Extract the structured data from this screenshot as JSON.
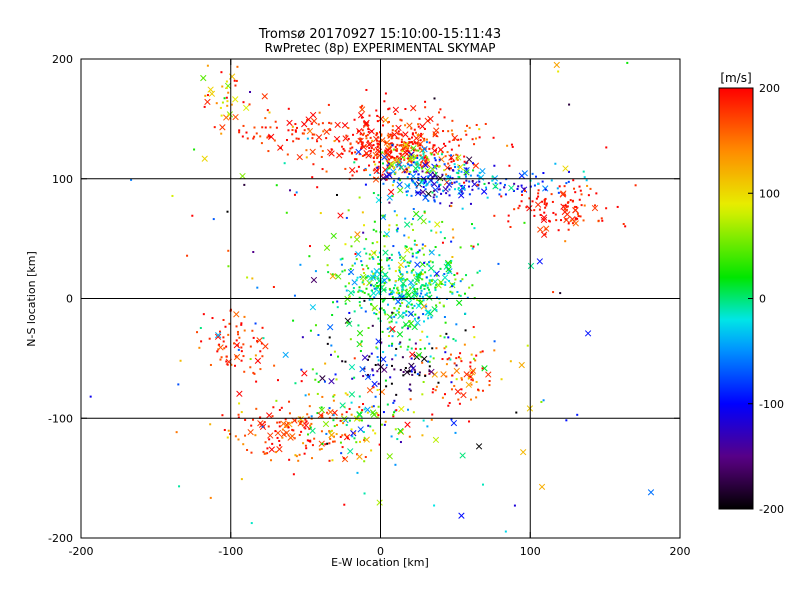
{
  "chart_data": {
    "type": "scatter",
    "title_line1": "Tromsø 20170927 15:10:00-15:11:43",
    "title_line2": "RwPretec (8p) EXPERIMENTAL SKYMAP",
    "xlabel": "E-W location [km]",
    "ylabel": "N-S location [km]",
    "xlim": [
      -200,
      200
    ],
    "ylim": [
      -200,
      200
    ],
    "xticks": [
      -200,
      -100,
      0,
      100,
      200
    ],
    "yticks": [
      -200,
      -100,
      0,
      100,
      200
    ],
    "grid": true,
    "grid_lines": [
      -100,
      0,
      100
    ],
    "colorbar": {
      "label": "[m/s]",
      "min": -200,
      "max": 200,
      "ticks": [
        200,
        100,
        0,
        -100,
        -200
      ],
      "colormap": "rainbow (black-purple-blue-cyan-green-yellow-orange-red)"
    },
    "markers": [
      "point",
      "cross"
    ],
    "clusters": [
      {
        "x": 10,
        "y": 128,
        "sx": 22,
        "sy": 14,
        "v": 185,
        "vs": 25,
        "n": 380
      },
      {
        "x": -50,
        "y": 140,
        "sx": 22,
        "sy": 10,
        "v": 185,
        "vs": 20,
        "n": 90
      },
      {
        "x": -105,
        "y": 170,
        "sx": 8,
        "sy": 18,
        "v": 130,
        "vs": 70,
        "n": 40
      },
      {
        "x": 35,
        "y": 98,
        "sx": 16,
        "sy": 10,
        "v": -85,
        "vs": 45,
        "n": 160
      },
      {
        "x": 20,
        "y": 112,
        "sx": 20,
        "sy": 8,
        "v": 40,
        "vs": 70,
        "n": 90
      },
      {
        "x": 85,
        "y": 95,
        "sx": 22,
        "sy": 6,
        "v": -80,
        "vs": 40,
        "n": 60
      },
      {
        "x": 120,
        "y": 75,
        "sx": 18,
        "sy": 9,
        "v": 190,
        "vs": 15,
        "n": 110
      },
      {
        "x": 15,
        "y": 8,
        "sx": 20,
        "sy": 18,
        "v": 5,
        "vs": 40,
        "n": 380
      },
      {
        "x": 15,
        "y": 45,
        "sx": 25,
        "sy": 22,
        "v": 20,
        "vs": 60,
        "n": 120
      },
      {
        "x": -95,
        "y": -40,
        "sx": 10,
        "sy": 14,
        "v": 185,
        "vs": 20,
        "n": 70
      },
      {
        "x": 55,
        "y": -60,
        "sx": 14,
        "sy": 12,
        "v": 170,
        "vs": 50,
        "n": 70
      },
      {
        "x": 10,
        "y": -60,
        "sx": 14,
        "sy": 8,
        "v": -170,
        "vs": 40,
        "n": 50
      },
      {
        "x": -20,
        "y": -100,
        "sx": 22,
        "sy": 14,
        "v": 60,
        "vs": 90,
        "n": 120
      },
      {
        "x": -60,
        "y": -110,
        "sx": 20,
        "sy": 14,
        "v": 175,
        "vs": 30,
        "n": 140
      },
      {
        "x": 10,
        "y": -40,
        "sx": 30,
        "sy": 20,
        "v": -20,
        "vs": 90,
        "n": 90
      },
      {
        "x": 0,
        "y": 0,
        "sx": 80,
        "sy": 100,
        "v": 40,
        "vs": 130,
        "n": 200
      }
    ]
  }
}
